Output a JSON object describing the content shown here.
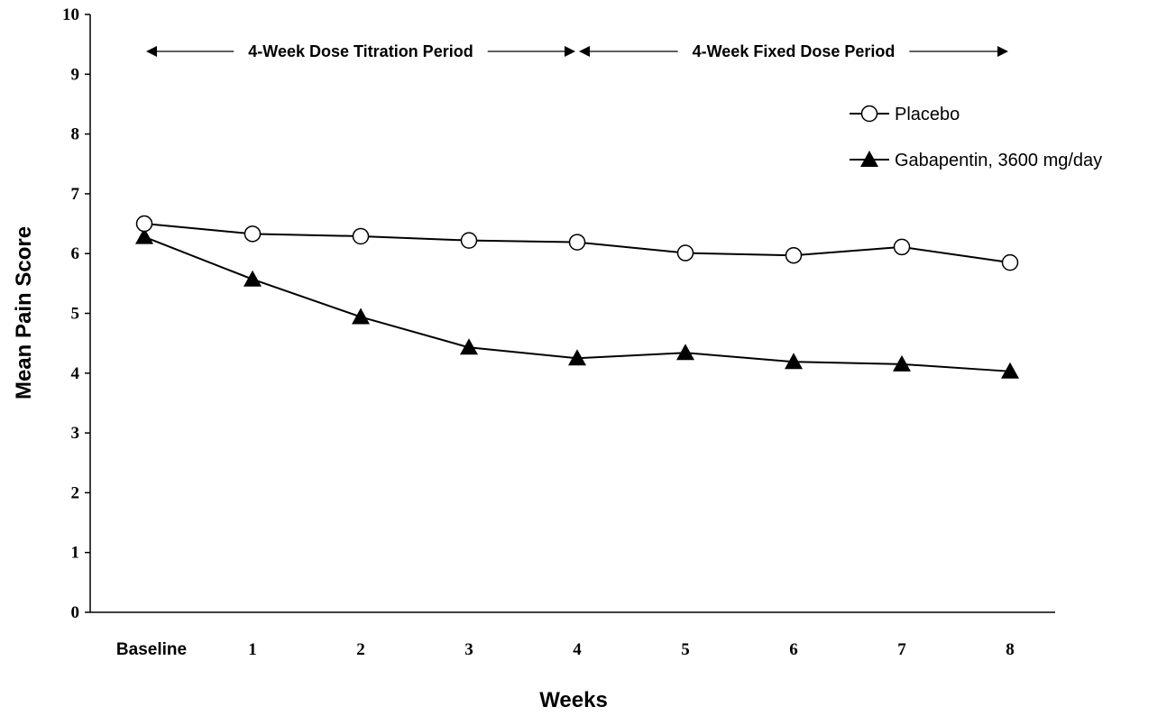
{
  "chart_data": {
    "type": "line",
    "title": "",
    "xlabel": "Weeks",
    "ylabel": "Mean Pain Score",
    "ylim": [
      0,
      10
    ],
    "yticks": [
      "0",
      "1",
      "2",
      "3",
      "4",
      "5",
      "6",
      "7",
      "8",
      "9",
      "10"
    ],
    "categories": [
      "Baseline",
      "1",
      "2",
      "3",
      "4",
      "5",
      "6",
      "7",
      "8"
    ],
    "series": [
      {
        "name": "Placebo",
        "marker": "open-circle",
        "color": "#000000",
        "values": [
          6.5,
          6.33,
          6.29,
          6.22,
          6.19,
          6.01,
          5.97,
          6.11,
          5.85
        ]
      },
      {
        "name": "Gabapentin, 3600 mg/day",
        "marker": "filled-triangle",
        "color": "#000000",
        "values": [
          6.28,
          5.57,
          4.94,
          4.43,
          4.25,
          4.34,
          4.19,
          4.15,
          4.03
        ]
      }
    ],
    "periods": [
      {
        "label": "4-Week Dose Titration Period",
        "from": "Baseline",
        "to": "4"
      },
      {
        "label": "4-Week Fixed Dose Period",
        "from": "4",
        "to": "8"
      }
    ],
    "legend_position": "top-right",
    "grid": false
  }
}
